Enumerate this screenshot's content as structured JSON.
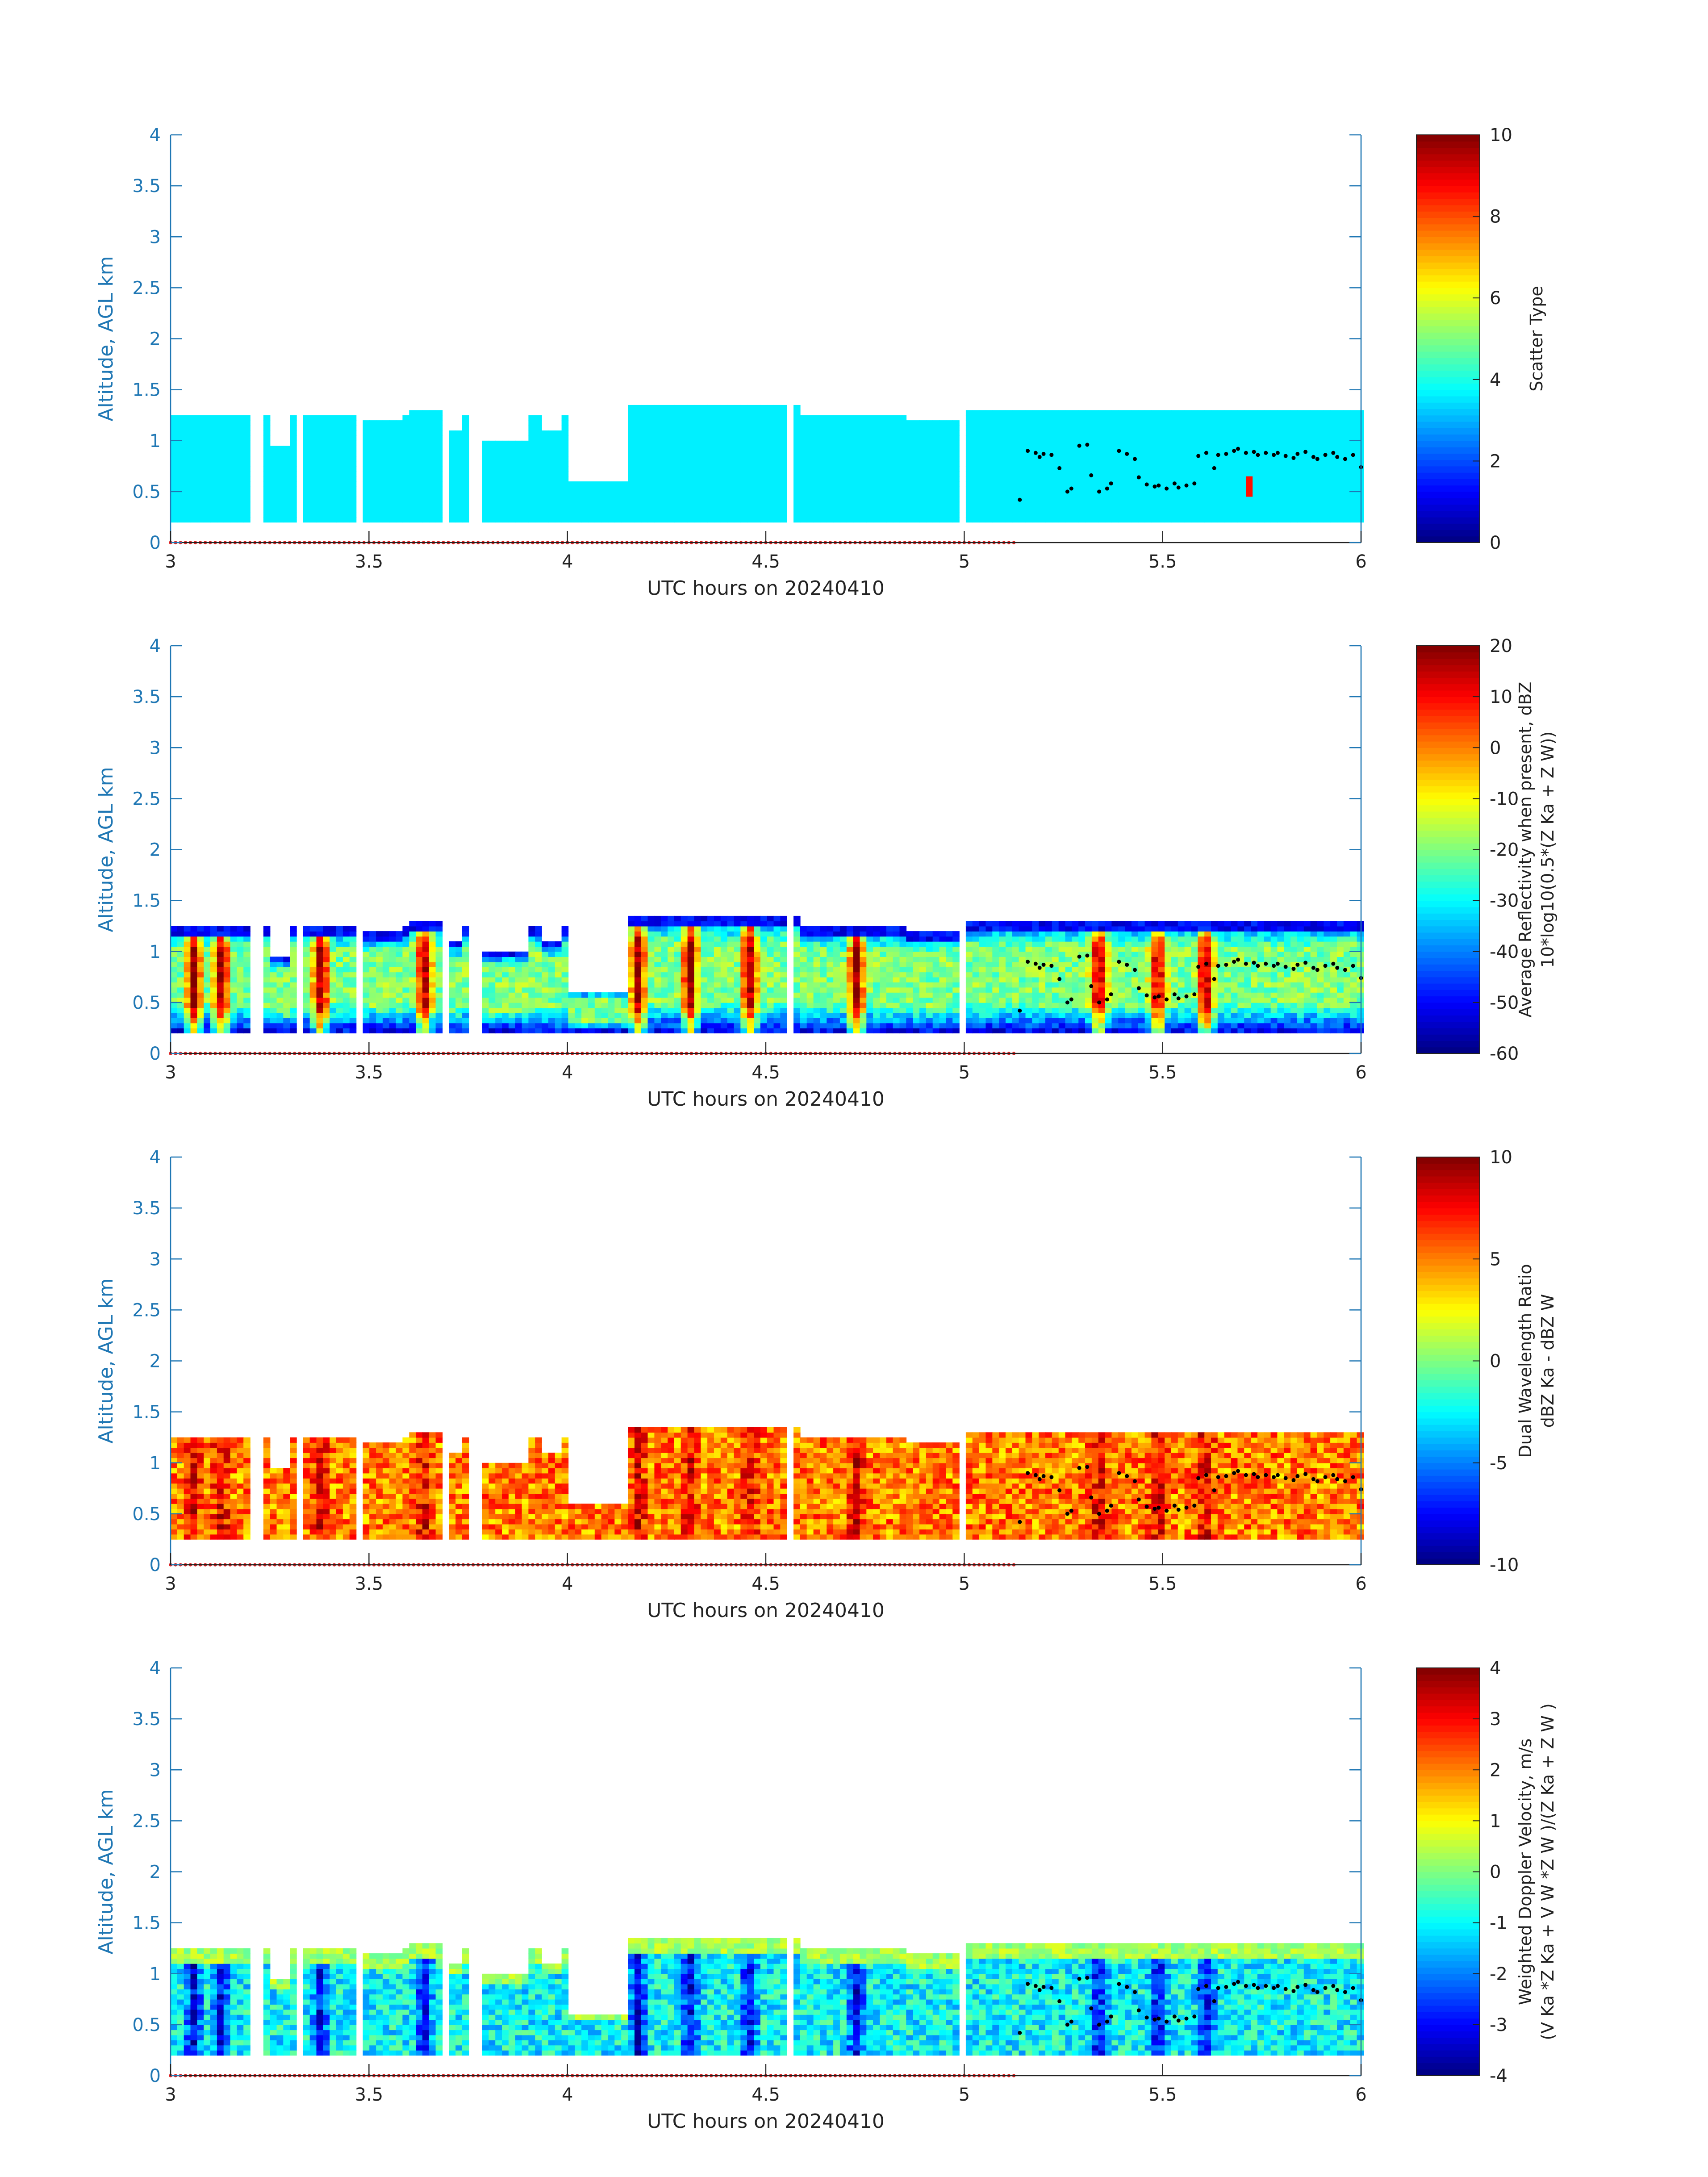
{
  "figure": {
    "shared_xlabel": "UTC hours on 20240410",
    "shared_ylabel": "Altitude, AGL km"
  },
  "chart_data": [
    {
      "type": "heatmap",
      "title": "",
      "xlabel": "UTC hours on 20240410",
      "ylabel": "Altitude, AGL km",
      "xlim": [
        3,
        6
      ],
      "ylim": [
        0,
        4
      ],
      "xticks": [
        3,
        3.5,
        4,
        4.5,
        5,
        5.5,
        6
      ],
      "yticks": [
        0,
        0.5,
        1,
        1.5,
        2,
        2.5,
        3,
        3.5,
        4
      ],
      "colorbar": {
        "label_lines": [
          "Scatter Type"
        ],
        "clim": [
          0,
          10
        ],
        "ticks": [
          0,
          2,
          4,
          6,
          8,
          10
        ],
        "colormap": "jet"
      },
      "field": "scatter_type",
      "grid": false
    },
    {
      "type": "heatmap",
      "title": "",
      "xlabel": "UTC hours on 20240410",
      "ylabel": "Altitude, AGL km",
      "xlim": [
        3,
        6
      ],
      "ylim": [
        0,
        4
      ],
      "xticks": [
        3,
        3.5,
        4,
        4.5,
        5,
        5.5,
        6
      ],
      "yticks": [
        0,
        0.5,
        1,
        1.5,
        2,
        2.5,
        3,
        3.5,
        4
      ],
      "colorbar": {
        "label_lines": [
          "Average Reflectivity when present, dBZ",
          "10*log10(0.5*(Z Ka + Z W))"
        ],
        "clim": [
          -60,
          20
        ],
        "ticks": [
          -60,
          -50,
          -40,
          -30,
          -20,
          -10,
          0,
          10,
          20
        ],
        "colormap": "jet"
      },
      "field": "reflectivity",
      "grid": false
    },
    {
      "type": "heatmap",
      "title": "",
      "xlabel": "UTC hours on 20240410",
      "ylabel": "Altitude, AGL km",
      "xlim": [
        3,
        6
      ],
      "ylim": [
        0,
        4
      ],
      "xticks": [
        3,
        3.5,
        4,
        4.5,
        5,
        5.5,
        6
      ],
      "yticks": [
        0,
        0.5,
        1,
        1.5,
        2,
        2.5,
        3,
        3.5,
        4
      ],
      "colorbar": {
        "label_lines": [
          "Dual Wavelength Ratio",
          "dBZ Ka - dBZ W"
        ],
        "clim": [
          -10,
          10
        ],
        "ticks": [
          -10,
          -5,
          0,
          5,
          10
        ],
        "colormap": "jet"
      },
      "field": "dwr",
      "grid": false
    },
    {
      "type": "heatmap",
      "title": "",
      "xlabel": "UTC hours on 20240410",
      "ylabel": "Altitude, AGL km",
      "xlim": [
        3,
        6
      ],
      "ylim": [
        0,
        4
      ],
      "xticks": [
        3,
        3.5,
        4,
        4.5,
        5,
        5.5,
        6
      ],
      "yticks": [
        0,
        0.5,
        1,
        1.5,
        2,
        2.5,
        3,
        3.5,
        4
      ],
      "colorbar": {
        "label_lines": [
          "Weighted Doppler Velocity, m/s",
          "(V Ka *Z Ka + V W *Z W )/(Z Ka + Z W )"
        ],
        "clim": [
          -4,
          4
        ],
        "ticks": [
          -4,
          -3,
          -2,
          -1,
          0,
          1,
          2,
          3,
          4
        ],
        "colormap": "jet"
      },
      "field": "velocity",
      "grid": false
    }
  ],
  "echo_field": {
    "base_km": 0.2,
    "default_top_km": 1.25,
    "segments": [
      [
        3.0,
        3.14,
        1.25
      ],
      [
        3.14,
        3.18,
        1.25
      ],
      [
        3.24,
        3.3,
        0.95
      ],
      [
        3.34,
        3.45,
        1.25
      ],
      [
        3.48,
        3.58,
        1.2
      ],
      [
        3.6,
        3.67,
        1.3
      ],
      [
        3.7,
        3.73,
        1.1
      ],
      [
        3.78,
        3.9,
        1.0
      ],
      [
        3.92,
        3.98,
        1.1
      ],
      [
        4.0,
        4.14,
        0.6
      ],
      [
        4.14,
        4.58,
        1.35
      ],
      [
        4.58,
        4.85,
        1.25
      ],
      [
        4.85,
        5.0,
        1.2
      ],
      [
        5.0,
        6.0,
        1.3
      ]
    ],
    "gaps": [
      [
        3.19,
        3.23
      ],
      [
        3.31,
        3.33
      ],
      [
        3.46,
        3.47
      ],
      [
        3.68,
        3.69
      ],
      [
        3.74,
        3.77
      ],
      [
        4.55,
        4.565
      ],
      [
        4.98,
        4.995
      ]
    ],
    "strong_columns": [
      3.05,
      3.12,
      3.37,
      3.63,
      4.17,
      4.3,
      4.45,
      4.72,
      5.33,
      5.48,
      5.6
    ],
    "scatter_marker_x": 5.71,
    "scatter_marker_bottom_km": 0.45,
    "scatter_marker_top_km": 0.65,
    "scatter_marker_value": 8.6,
    "base_value_scatter": 3.6
  },
  "cloud_base_points": {
    "x": [
      5.14,
      5.16,
      5.18,
      5.19,
      5.2,
      5.22,
      5.24,
      5.26,
      5.27,
      5.29,
      5.31,
      5.32,
      5.34,
      5.36,
      5.37,
      5.39,
      5.41,
      5.43,
      5.44,
      5.46,
      5.48,
      5.49,
      5.51,
      5.53,
      5.54,
      5.56,
      5.58,
      5.59,
      5.61,
      5.63,
      5.64,
      5.66,
      5.68,
      5.69,
      5.71,
      5.73,
      5.74,
      5.76,
      5.78,
      5.79,
      5.81,
      5.83,
      5.84,
      5.86,
      5.88,
      5.89,
      5.91,
      5.93,
      5.94,
      5.96,
      5.98,
      6.0
    ],
    "y": [
      0.42,
      0.9,
      0.88,
      0.84,
      0.87,
      0.86,
      0.73,
      0.5,
      0.53,
      0.95,
      0.96,
      0.66,
      0.5,
      0.53,
      0.58,
      0.9,
      0.87,
      0.82,
      0.64,
      0.57,
      0.55,
      0.56,
      0.53,
      0.58,
      0.54,
      0.56,
      0.58,
      0.85,
      0.88,
      0.73,
      0.86,
      0.87,
      0.9,
      0.92,
      0.88,
      0.89,
      0.86,
      0.88,
      0.86,
      0.88,
      0.85,
      0.83,
      0.87,
      0.89,
      0.84,
      0.82,
      0.86,
      0.88,
      0.84,
      0.82,
      0.86,
      0.74
    ]
  },
  "ground_flag_points": {
    "x_start": 3.0,
    "x_end": 5.13,
    "y": 0.0,
    "color": "#e02020"
  }
}
